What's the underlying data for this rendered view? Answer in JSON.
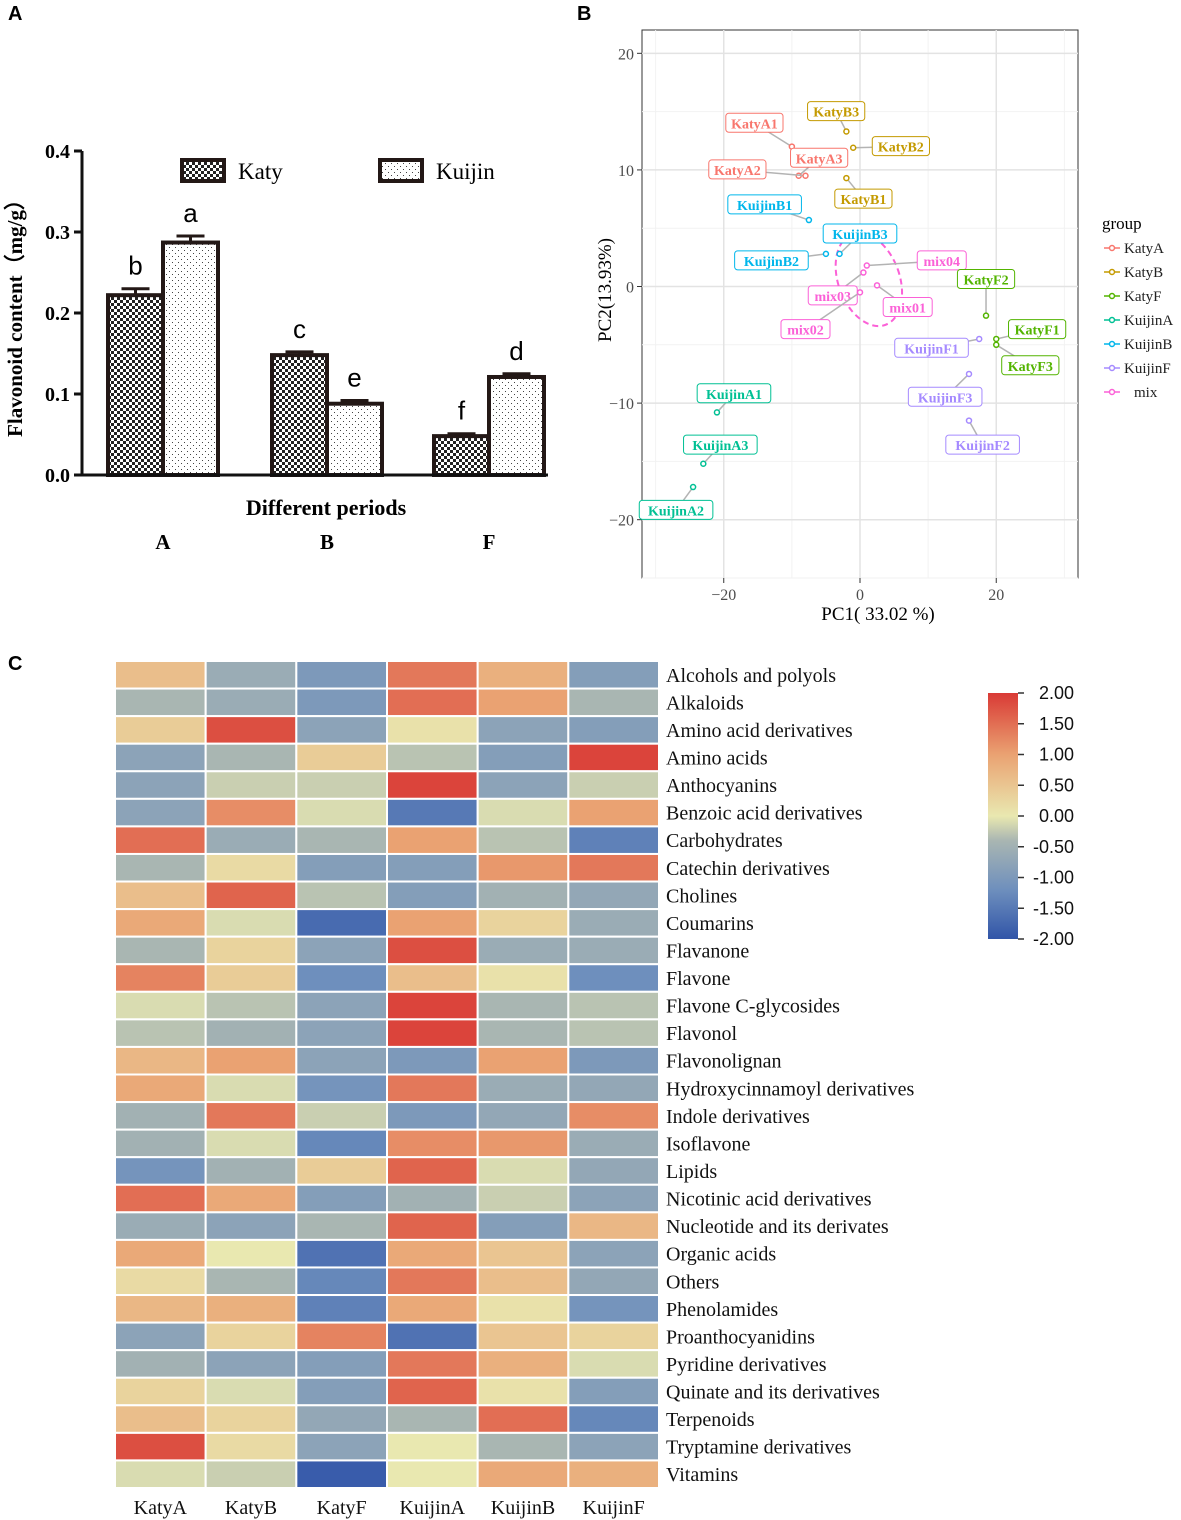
{
  "panel_labels": {
    "a": "A",
    "b": "B",
    "c": "C"
  },
  "chart_data": [
    {
      "panel": "A",
      "type": "bar",
      "ylabel": "Flavonoid content（mg/g）",
      "xlabel": "Different periods",
      "ylim": [
        0,
        0.4
      ],
      "yticks": [
        0.0,
        0.1,
        0.2,
        0.3,
        0.4
      ],
      "ytick_labels": [
        "0.0",
        "0.1",
        "0.2",
        "0.3",
        "0.4"
      ],
      "categories": [
        "A",
        "B",
        "F"
      ],
      "legend": [
        "Katy",
        "Kuijin"
      ],
      "series": [
        {
          "name": "Katy",
          "values": [
            0.222,
            0.148,
            0.048
          ],
          "errors": [
            0.008,
            0.004,
            0.003
          ],
          "letters": [
            "b",
            "c",
            "f"
          ]
        },
        {
          "name": "Kuijin",
          "values": [
            0.287,
            0.088,
            0.121
          ],
          "errors": [
            0.008,
            0.004,
            0.004
          ],
          "letters": [
            "a",
            "e",
            "d"
          ]
        }
      ]
    },
    {
      "panel": "B",
      "type": "scatter",
      "xlabel": "PC1( 33.02 %)",
      "ylabel": "PC2(13.93%)",
      "xlim": [
        -32,
        32
      ],
      "ylim": [
        -25,
        22
      ],
      "xticks": [
        -20,
        0,
        20
      ],
      "xtick_labels": [
        "−20",
        "0",
        "20"
      ],
      "yticks": [
        -20,
        -10,
        0,
        10,
        20
      ],
      "ytick_labels": [
        "−20",
        "−10",
        "0",
        "10",
        "20"
      ],
      "legend_title": "group",
      "groups": [
        {
          "name": "KatyA",
          "color": "#f8766d"
        },
        {
          "name": "KatyB",
          "color": "#c49a00"
        },
        {
          "name": "KatyF",
          "color": "#53b400"
        },
        {
          "name": "KuijinA",
          "color": "#00c094"
        },
        {
          "name": "KuijinB",
          "color": "#00b6eb"
        },
        {
          "name": "KuijinF",
          "color": "#a58aff"
        },
        {
          "name": "mix",
          "color": "#fb61d7"
        }
      ],
      "points": [
        {
          "label": "KatyA1",
          "group": 0,
          "x": -10,
          "y": 12,
          "lx": -15.5,
          "ly": 14
        },
        {
          "label": "KatyA3",
          "group": 0,
          "x": -9,
          "y": 9.5,
          "lx": -6,
          "ly": 11
        },
        {
          "label": "KatyA2",
          "group": 0,
          "x": -8,
          "y": 9.5,
          "lx": -18,
          "ly": 10
        },
        {
          "label": "KatyB3",
          "group": 1,
          "x": -2,
          "y": 13.3,
          "lx": -3.5,
          "ly": 15
        },
        {
          "label": "KatyB2",
          "group": 1,
          "x": -1,
          "y": 11.9,
          "lx": 6,
          "ly": 12
        },
        {
          "label": "KatyB1",
          "group": 1,
          "x": -2,
          "y": 9.3,
          "lx": 0.5,
          "ly": 7.5
        },
        {
          "label": "KuijinB1",
          "group": 4,
          "x": -7.5,
          "y": 5.7,
          "lx": -14,
          "ly": 7
        },
        {
          "label": "KuijinB3",
          "group": 4,
          "x": -3,
          "y": 2.8,
          "lx": 0,
          "ly": 4.5
        },
        {
          "label": "KuijinB2",
          "group": 4,
          "x": -5,
          "y": 2.8,
          "lx": -13,
          "ly": 2.2
        },
        {
          "label": "mix04",
          "group": 6,
          "x": 1,
          "y": 1.8,
          "lx": 12,
          "ly": 2.2
        },
        {
          "label": "mix03",
          "group": 6,
          "x": 0.5,
          "y": 1.2,
          "lx": -4,
          "ly": -0.8
        },
        {
          "label": "mix01",
          "group": 6,
          "x": 2.5,
          "y": 0.1,
          "lx": 7,
          "ly": -1.8
        },
        {
          "label": "mix02",
          "group": 6,
          "x": 0,
          "y": -0.5,
          "lx": -8,
          "ly": -3.7
        },
        {
          "label": "KatyF2",
          "group": 2,
          "x": 18.5,
          "y": -2.5,
          "lx": 18.5,
          "ly": 0.6
        },
        {
          "label": "KatyF1",
          "group": 2,
          "x": 20,
          "y": -4.5,
          "lx": 26,
          "ly": -3.7
        },
        {
          "label": "KatyF3",
          "group": 2,
          "x": 20,
          "y": -5,
          "lx": 25,
          "ly": -6.8
        },
        {
          "label": "KuijinF1",
          "group": 5,
          "x": 17.5,
          "y": -4.5,
          "lx": 10.5,
          "ly": -5.3
        },
        {
          "label": "KuijinF3",
          "group": 5,
          "x": 16,
          "y": -7.5,
          "lx": 12.5,
          "ly": -9.5
        },
        {
          "label": "KuijinF2",
          "group": 5,
          "x": 16,
          "y": -11.5,
          "lx": 18,
          "ly": -13.6
        },
        {
          "label": "KuijinA1",
          "group": 3,
          "x": -21,
          "y": -10.8,
          "lx": -18.5,
          "ly": -9.2
        },
        {
          "label": "KuijinA3",
          "group": 3,
          "x": -23,
          "y": -15.2,
          "lx": -20.5,
          "ly": -13.6
        },
        {
          "label": "KuijinA2",
          "group": 3,
          "x": -24.5,
          "y": -17.2,
          "lx": -27,
          "ly": -19.2
        }
      ],
      "ellipse": {
        "group": 6,
        "cx": 1.3,
        "cy": 0.6,
        "rx": 1.8,
        "ry": 3.6,
        "angle_deg": -20
      }
    },
    {
      "panel": "C",
      "type": "heatmap",
      "columns": [
        "KatyA",
        "KatyB",
        "KatyF",
        "KuijinA",
        "KuijinB",
        "KuijinF"
      ],
      "rows": [
        "Alcohols and polyols",
        "Alkaloids",
        "Amino acid derivatives",
        "Amino acids",
        "Anthocyanins",
        "Benzoic acid derivatives",
        "Carbohydrates",
        "Catechin derivatives",
        "Cholines",
        "Coumarins",
        "Flavanone",
        "Flavone",
        "Flavone C-glycosides",
        "Flavonol",
        "Flavonolignan",
        "Hydroxycinnamoyl derivatives",
        "Indole derivatives",
        "Isoflavone",
        "Lipids",
        "Nicotinic acid derivatives",
        "Nucleotide and its derivates",
        "Organic acids",
        "Others",
        "Phenolamides",
        "Proanthocyanidins",
        "Pyridine derivatives",
        "Quinate and its derivatives",
        "Terpenoids",
        "Tryptamine derivatives",
        "Vitamins"
      ],
      "values": [
        [
          0.6,
          -0.6,
          -1.0,
          1.4,
          0.8,
          -0.9
        ],
        [
          -0.4,
          -0.6,
          -1.0,
          1.5,
          1.0,
          -0.4
        ],
        [
          0.4,
          1.8,
          -0.8,
          0.1,
          -0.8,
          -0.9
        ],
        [
          -0.8,
          -0.4,
          0.4,
          -0.3,
          -0.9,
          1.9
        ],
        [
          -0.8,
          -0.2,
          -0.2,
          1.9,
          -0.8,
          -0.2
        ],
        [
          -0.8,
          1.2,
          -0.1,
          -1.5,
          -0.1,
          1.0
        ],
        [
          1.5,
          -0.6,
          -0.4,
          1.0,
          -0.3,
          -1.4
        ],
        [
          -0.4,
          0.2,
          -0.9,
          -0.9,
          1.1,
          1.4
        ],
        [
          0.6,
          1.6,
          -0.3,
          -0.9,
          -0.5,
          -0.7
        ],
        [
          0.9,
          -0.1,
          -1.7,
          1.0,
          0.3,
          -0.6
        ],
        [
          -0.4,
          0.3,
          -0.8,
          1.8,
          -0.6,
          -0.6
        ],
        [
          1.3,
          0.4,
          -1.2,
          0.6,
          0.1,
          -1.2
        ],
        [
          -0.1,
          -0.3,
          -0.8,
          1.9,
          -0.4,
          -0.3
        ],
        [
          -0.3,
          -0.5,
          -0.8,
          1.9,
          -0.4,
          -0.3
        ],
        [
          0.7,
          1.0,
          -0.8,
          -1.0,
          1.0,
          -1.0
        ],
        [
          0.9,
          -0.1,
          -1.1,
          1.4,
          -0.6,
          -0.7
        ],
        [
          -0.5,
          1.4,
          -0.2,
          -1.0,
          -0.7,
          1.2
        ],
        [
          -0.5,
          -0.1,
          -1.3,
          1.2,
          1.1,
          -0.6
        ],
        [
          -1.1,
          -0.5,
          0.4,
          1.6,
          -0.1,
          -0.7
        ],
        [
          1.5,
          0.9,
          -0.9,
          -0.5,
          -0.2,
          -0.8
        ],
        [
          -0.6,
          -0.8,
          -0.4,
          1.6,
          -0.9,
          0.7
        ],
        [
          0.9,
          0.0,
          -1.6,
          0.9,
          0.5,
          -0.8
        ],
        [
          0.2,
          -0.4,
          -1.3,
          1.4,
          0.6,
          -0.7
        ],
        [
          0.7,
          0.8,
          -1.4,
          0.9,
          0.1,
          -1.1
        ],
        [
          -0.8,
          0.3,
          1.3,
          -1.6,
          0.5,
          0.3
        ],
        [
          -0.5,
          -0.8,
          -0.9,
          1.4,
          0.8,
          -0.1
        ],
        [
          0.3,
          -0.1,
          -0.9,
          1.6,
          0.1,
          -0.9
        ],
        [
          0.6,
          0.3,
          -0.7,
          -0.4,
          1.5,
          -1.3
        ],
        [
          1.8,
          0.2,
          -0.8,
          0.0,
          -0.4,
          -0.8
        ],
        [
          -0.1,
          -0.2,
          -1.9,
          0.0,
          0.9,
          0.8
        ]
      ],
      "colorbar": {
        "min": -2.0,
        "max": 2.0,
        "ticks": [
          "2.00",
          "1.50",
          "1.00",
          "0.50",
          "0.00",
          "-0.50",
          "-1.00",
          "-1.50",
          "-2.00"
        ],
        "colors": [
          "#3155a8",
          "#6e8fbd",
          "#a9b6b2",
          "#e9e8b0",
          "#eaa272",
          "#d93a35"
        ]
      }
    }
  ]
}
